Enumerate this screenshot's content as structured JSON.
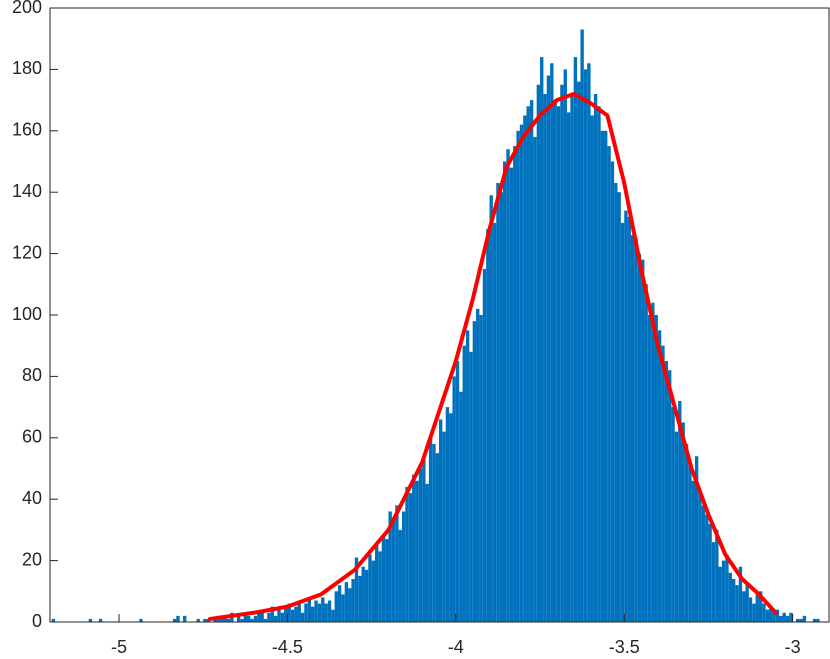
{
  "chart_data": {
    "type": "histogram",
    "bins": [
      -5.2,
      -5.19,
      -5.18,
      -5.17,
      -5.16,
      -5.15,
      -5.14,
      -5.13,
      -5.12,
      -5.11,
      -5.1,
      -5.09,
      -5.08,
      -5.07,
      -5.06,
      -5.05,
      -5.04,
      -5.03,
      -5.02,
      -5.01,
      -5.0,
      -4.99,
      -4.98,
      -4.97,
      -4.96,
      -4.95,
      -4.94,
      -4.93,
      -4.92,
      -4.91,
      -4.9,
      -4.89,
      -4.88,
      -4.87,
      -4.86,
      -4.85,
      -4.84,
      -4.83,
      -4.82,
      -4.81,
      -4.8,
      -4.79,
      -4.78,
      -4.77,
      -4.76,
      -4.75,
      -4.74,
      -4.73,
      -4.72,
      -4.71,
      -4.7,
      -4.69,
      -4.68,
      -4.67,
      -4.66,
      -4.65,
      -4.64,
      -4.63,
      -4.62,
      -4.61,
      -4.6,
      -4.59,
      -4.58,
      -4.57,
      -4.56,
      -4.55,
      -4.54,
      -4.53,
      -4.52,
      -4.51,
      -4.5,
      -4.49,
      -4.48,
      -4.47,
      -4.46,
      -4.45,
      -4.44,
      -4.43,
      -4.42,
      -4.41,
      -4.4,
      -4.39,
      -4.38,
      -4.37,
      -4.36,
      -4.35,
      -4.34,
      -4.33,
      -4.32,
      -4.31,
      -4.3,
      -4.29,
      -4.28,
      -4.27,
      -4.26,
      -4.25,
      -4.24,
      -4.23,
      -4.22,
      -4.21,
      -4.2,
      -4.19,
      -4.18,
      -4.17,
      -4.16,
      -4.15,
      -4.14,
      -4.13,
      -4.12,
      -4.11,
      -4.1,
      -4.09,
      -4.08,
      -4.07,
      -4.06,
      -4.05,
      -4.04,
      -4.03,
      -4.02,
      -4.01,
      -4.0,
      -3.99,
      -3.98,
      -3.97,
      -3.96,
      -3.95,
      -3.94,
      -3.93,
      -3.92,
      -3.91,
      -3.9,
      -3.89,
      -3.88,
      -3.87,
      -3.86,
      -3.85,
      -3.84,
      -3.83,
      -3.82,
      -3.81,
      -3.8,
      -3.79,
      -3.78,
      -3.77,
      -3.76,
      -3.75,
      -3.74,
      -3.73,
      -3.72,
      -3.71,
      -3.7,
      -3.69,
      -3.68,
      -3.67,
      -3.66,
      -3.65,
      -3.64,
      -3.63,
      -3.62,
      -3.61,
      -3.6,
      -3.59,
      -3.58,
      -3.57,
      -3.56,
      -3.55,
      -3.54,
      -3.53,
      -3.52,
      -3.51,
      -3.5,
      -3.49,
      -3.48,
      -3.47,
      -3.46,
      -3.45,
      -3.44,
      -3.43,
      -3.42,
      -3.41,
      -3.4,
      -3.39,
      -3.38,
      -3.37,
      -3.36,
      -3.35,
      -3.34,
      -3.33,
      -3.32,
      -3.31,
      -3.3,
      -3.29,
      -3.28,
      -3.27,
      -3.26,
      -3.25,
      -3.24,
      -3.23,
      -3.22,
      -3.21,
      -3.2,
      -3.19,
      -3.18,
      -3.17,
      -3.16,
      -3.15,
      -3.14,
      -3.13,
      -3.12,
      -3.11,
      -3.1,
      -3.09,
      -3.08,
      -3.07,
      -3.06,
      -3.05,
      -3.04,
      -3.03,
      -3.02,
      -3.01,
      -3.0,
      -2.99,
      -2.98,
      -2.97,
      -2.96,
      -2.95,
      -2.94,
      -2.93,
      -2.92
    ],
    "values": [
      1,
      0,
      0,
      0,
      0,
      0,
      0,
      0,
      0,
      0,
      0,
      1,
      0,
      0,
      1,
      0,
      0,
      0,
      0,
      0,
      0,
      0,
      0,
      0,
      0,
      0,
      1,
      0,
      0,
      0,
      0,
      0,
      0,
      0,
      0,
      0,
      1,
      2,
      0,
      2,
      0,
      0,
      0,
      1,
      0,
      1,
      1,
      0,
      1,
      2,
      1,
      2,
      1,
      3,
      0,
      2,
      1,
      3,
      2,
      1,
      2,
      3,
      4,
      1,
      3,
      5,
      2,
      4,
      3,
      5,
      6,
      4,
      5,
      7,
      3,
      6,
      8,
      5,
      7,
      6,
      8,
      6,
      7,
      4,
      10,
      12,
      9,
      13,
      11,
      14,
      21,
      15,
      18,
      17,
      22,
      20,
      25,
      23,
      28,
      27,
      36,
      34,
      38,
      30,
      36,
      44,
      42,
      48,
      46,
      50,
      53,
      45,
      60,
      58,
      55,
      66,
      62,
      70,
      68,
      80,
      85,
      75,
      90,
      95,
      88,
      98,
      102,
      100,
      115,
      128,
      139,
      130,
      143,
      140,
      150,
      154,
      148,
      155,
      160,
      162,
      165,
      168,
      170,
      158,
      175,
      184,
      172,
      178,
      182,
      170,
      168,
      175,
      180,
      166,
      172,
      184,
      176,
      193,
      180,
      182,
      165,
      172,
      168,
      160,
      160,
      155,
      150,
      143,
      140,
      130,
      134,
      132,
      126,
      125,
      120,
      118,
      110,
      100,
      104,
      100,
      95,
      90,
      85,
      82,
      70,
      62,
      72,
      65,
      58,
      52,
      46,
      54,
      42,
      38,
      35,
      32,
      26,
      30,
      18,
      20,
      22,
      16,
      14,
      12,
      18,
      10,
      12,
      8,
      6,
      9,
      10,
      6,
      4,
      5,
      3,
      4,
      2,
      3,
      2,
      3,
      0,
      1,
      1,
      2,
      0,
      0,
      1,
      1
    ],
    "color": "#0072bd",
    "line": {
      "x": [
        -4.73,
        -4.6,
        -4.5,
        -4.4,
        -4.3,
        -4.2,
        -4.1,
        -4.0,
        -3.95,
        -3.9,
        -3.85,
        -3.8,
        -3.75,
        -3.7,
        -3.65,
        -3.6,
        -3.55,
        -3.5,
        -3.45,
        -3.4,
        -3.35,
        -3.3,
        -3.25,
        -3.2,
        -3.15,
        -3.1,
        -3.05
      ],
      "y": [
        1,
        3,
        5,
        9,
        17,
        30,
        52,
        85,
        105,
        128,
        148,
        158,
        165,
        170,
        172,
        169,
        165,
        143,
        115,
        90,
        70,
        50,
        35,
        22,
        14,
        9,
        3
      ],
      "color": "#ff0000"
    },
    "xlim": [
      -5.205,
      -2.892
    ],
    "ylim": [
      0,
      200
    ],
    "xticks": [
      -5,
      -4.5,
      -4,
      -3.5,
      -3
    ],
    "yticks": [
      0,
      20,
      40,
      60,
      80,
      100,
      120,
      140,
      160,
      180,
      200
    ]
  }
}
